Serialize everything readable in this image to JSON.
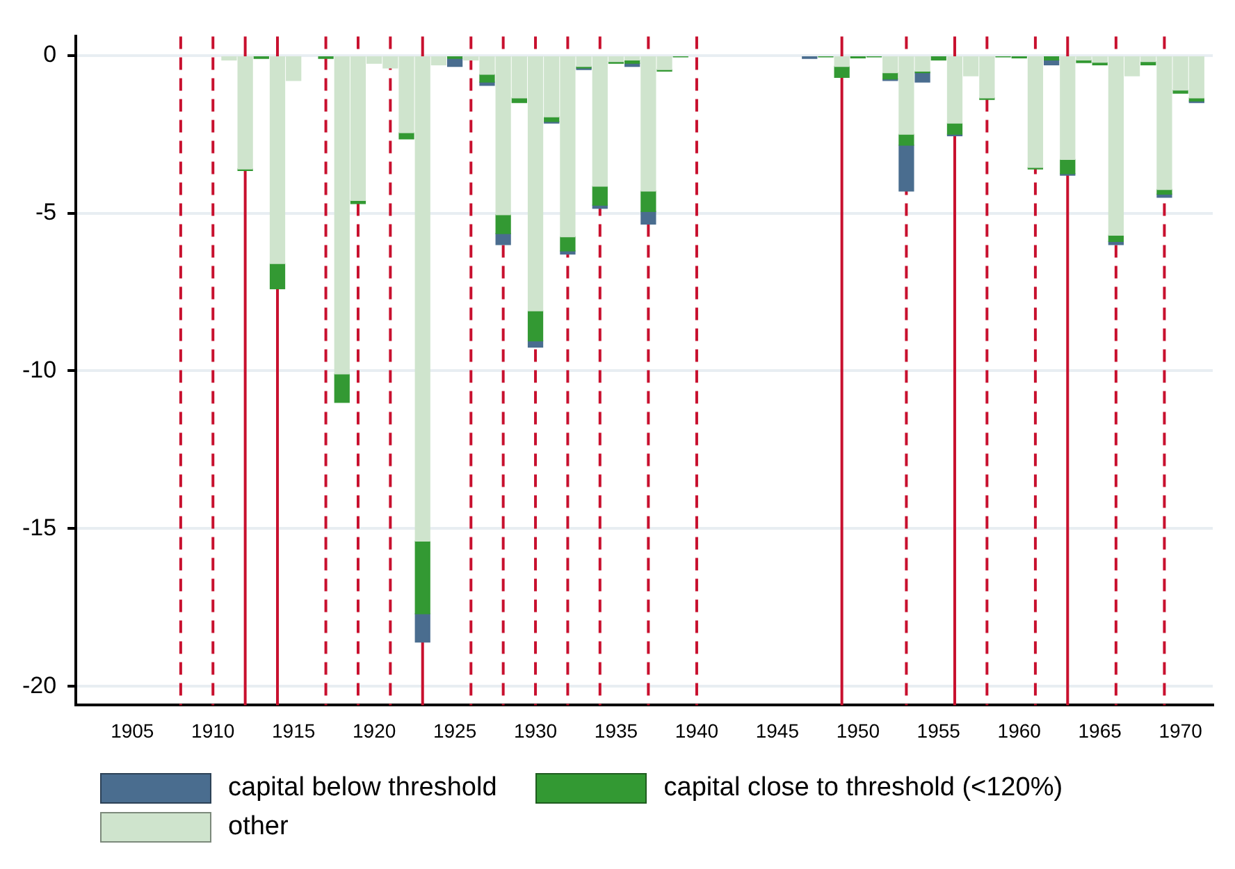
{
  "chart_data": {
    "type": "bar",
    "stacked": true,
    "x": [
      1911,
      1912,
      1913,
      1914,
      1915,
      1917,
      1918,
      1919,
      1920,
      1921,
      1922,
      1923,
      1924,
      1925,
      1926,
      1927,
      1928,
      1929,
      1930,
      1931,
      1932,
      1933,
      1934,
      1935,
      1936,
      1937,
      1938,
      1939,
      1947,
      1948,
      1949,
      1950,
      1951,
      1952,
      1953,
      1954,
      1955,
      1956,
      1957,
      1958,
      1959,
      1960,
      1961,
      1962,
      1963,
      1964,
      1965,
      1966,
      1967,
      1968,
      1969,
      1970,
      1971
    ],
    "series": [
      {
        "name": "other",
        "color": "#cfe4cd",
        "values": [
          -0.15,
          -3.6,
          null,
          -6.6,
          -0.8,
          null,
          -10.1,
          -4.6,
          -0.25,
          -0.4,
          -2.45,
          -15.4,
          -0.3,
          null,
          -0.15,
          -0.6,
          -5.05,
          -1.35,
          -8.1,
          -1.95,
          -5.75,
          -0.35,
          -4.15,
          -0.2,
          -0.15,
          -4.3,
          -0.45,
          null,
          null,
          null,
          -0.35,
          null,
          null,
          -0.55,
          -2.5,
          -0.5,
          null,
          -2.15,
          -0.65,
          -1.35,
          null,
          null,
          -3.55,
          null,
          -3.3,
          -0.15,
          -0.22,
          -5.7,
          -0.65,
          -0.2,
          -4.25,
          -1.1,
          -1.35
        ]
      },
      {
        "name": "capital close to threshold (<120%)",
        "color": "#339933",
        "values": [
          null,
          -0.05,
          -0.1,
          -0.8,
          null,
          -0.1,
          -0.9,
          -0.1,
          null,
          null,
          -0.2,
          -2.3,
          null,
          -0.1,
          null,
          -0.25,
          -0.6,
          -0.15,
          -0.95,
          -0.15,
          -0.45,
          -0.05,
          -0.6,
          -0.05,
          -0.1,
          -0.65,
          -0.05,
          -0.05,
          null,
          -0.05,
          -0.35,
          -0.08,
          -0.05,
          -0.2,
          -0.35,
          -0.05,
          -0.15,
          -0.35,
          null,
          -0.05,
          -0.05,
          -0.08,
          -0.05,
          -0.15,
          -0.45,
          -0.08,
          -0.08,
          -0.2,
          null,
          -0.1,
          -0.15,
          -0.1,
          -0.1
        ]
      },
      {
        "name": "capital below threshold",
        "color": "#4a6d8f",
        "values": [
          null,
          null,
          null,
          null,
          null,
          null,
          null,
          null,
          null,
          null,
          null,
          -0.9,
          null,
          -0.25,
          null,
          -0.1,
          -0.35,
          null,
          -0.2,
          -0.05,
          -0.1,
          -0.05,
          -0.1,
          null,
          -0.1,
          -0.4,
          null,
          null,
          -0.1,
          null,
          null,
          null,
          null,
          -0.05,
          -1.45,
          -0.3,
          null,
          -0.05,
          null,
          null,
          null,
          null,
          null,
          -0.15,
          -0.05,
          null,
          null,
          -0.1,
          null,
          null,
          -0.1,
          null,
          -0.05
        ]
      }
    ],
    "xlim": [
      1901.5,
      1972
    ],
    "xticks": [
      1905,
      1910,
      1915,
      1920,
      1925,
      1930,
      1935,
      1940,
      1945,
      1950,
      1955,
      1960,
      1965,
      1970
    ],
    "ylim": [
      -20.6,
      0.6
    ],
    "yticks": [
      0,
      -5,
      -10,
      -15,
      -20
    ],
    "grid": "y",
    "legend": "bottom",
    "ref_lines": [
      {
        "axis": "x",
        "value": 1908,
        "color": "#c8102e",
        "line_style": "dashed"
      },
      {
        "axis": "x",
        "value": 1910,
        "color": "#c8102e",
        "line_style": "dashed"
      },
      {
        "axis": "x",
        "value": 1912,
        "color": "#c8102e",
        "line_style": "solid"
      },
      {
        "axis": "x",
        "value": 1914,
        "color": "#c8102e",
        "line_style": "solid"
      },
      {
        "axis": "x",
        "value": 1917,
        "color": "#c8102e",
        "line_style": "dashed"
      },
      {
        "axis": "x",
        "value": 1919,
        "color": "#c8102e",
        "line_style": "dashed"
      },
      {
        "axis": "x",
        "value": 1921,
        "color": "#c8102e",
        "line_style": "dashed"
      },
      {
        "axis": "x",
        "value": 1923,
        "color": "#c8102e",
        "line_style": "solid"
      },
      {
        "axis": "x",
        "value": 1926,
        "color": "#c8102e",
        "line_style": "dashed"
      },
      {
        "axis": "x",
        "value": 1928,
        "color": "#c8102e",
        "line_style": "dashed"
      },
      {
        "axis": "x",
        "value": 1930,
        "color": "#c8102e",
        "line_style": "dashed"
      },
      {
        "axis": "x",
        "value": 1932,
        "color": "#c8102e",
        "line_style": "dashed"
      },
      {
        "axis": "x",
        "value": 1934,
        "color": "#c8102e",
        "line_style": "dashed"
      },
      {
        "axis": "x",
        "value": 1937,
        "color": "#c8102e",
        "line_style": "dashed"
      },
      {
        "axis": "x",
        "value": 1940,
        "color": "#c8102e",
        "line_style": "dashed"
      },
      {
        "axis": "x",
        "value": 1949,
        "color": "#c8102e",
        "line_style": "solid"
      },
      {
        "axis": "x",
        "value": 1953,
        "color": "#c8102e",
        "line_style": "dashed"
      },
      {
        "axis": "x",
        "value": 1956,
        "color": "#c8102e",
        "line_style": "solid"
      },
      {
        "axis": "x",
        "value": 1958,
        "color": "#c8102e",
        "line_style": "dashed"
      },
      {
        "axis": "x",
        "value": 1961,
        "color": "#c8102e",
        "line_style": "dashed"
      },
      {
        "axis": "x",
        "value": 1963,
        "color": "#c8102e",
        "line_style": "solid"
      },
      {
        "axis": "x",
        "value": 1966,
        "color": "#c8102e",
        "line_style": "dashed"
      },
      {
        "axis": "x",
        "value": 1969,
        "color": "#c8102e",
        "line_style": "dashed"
      }
    ]
  }
}
